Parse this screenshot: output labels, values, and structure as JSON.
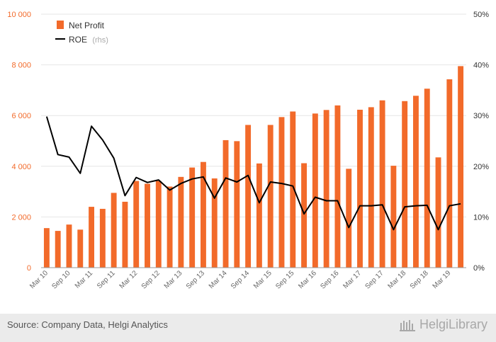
{
  "chart_data": {
    "type": "bar",
    "categories": [
      "Mar 10",
      "Jun 10",
      "Sep 10",
      "Dec 10",
      "Mar 11",
      "Jun 11",
      "Sep 11",
      "Dec 11",
      "Mar 12",
      "Jun 12",
      "Sep 12",
      "Dec 12",
      "Mar 13",
      "Jun 13",
      "Sep 13",
      "Dec 13",
      "Mar 14",
      "Jun 14",
      "Sep 14",
      "Dec 14",
      "Mar 15",
      "Jun 15",
      "Sep 15",
      "Dec 15",
      "Mar 16",
      "Jun 16",
      "Sep 16",
      "Dec 16",
      "Mar 17",
      "Jun 17",
      "Sep 17",
      "Dec 17",
      "Mar 18",
      "Jun 18",
      "Sep 18",
      "Dec 18",
      "Mar 19",
      "Jun 19"
    ],
    "x_tick_labels": [
      "Mar 10",
      "Sep 10",
      "Mar 11",
      "Sep 11",
      "Mar 12",
      "Sep 12",
      "Mar 13",
      "Sep 13",
      "Mar 14",
      "Sep 14",
      "Mar 15",
      "Sep 15",
      "Mar 16",
      "Sep 16",
      "Mar 17",
      "Sep 17",
      "Mar 18",
      "Sep 18",
      "Mar 19"
    ],
    "series": [
      {
        "name": "Net Profit",
        "axis": "left",
        "chart": "bar",
        "color": "#f26a2a",
        "values": [
          1560,
          1450,
          1700,
          1500,
          2400,
          2320,
          2950,
          2600,
          3420,
          3310,
          3420,
          3200,
          3580,
          3950,
          4170,
          3520,
          5030,
          4990,
          5630,
          4110,
          5630,
          5940,
          6160,
          4120,
          6080,
          6220,
          6400,
          3900,
          6230,
          6330,
          6600,
          4020,
          6570,
          6780,
          7060,
          4350,
          7430,
          7950
        ]
      },
      {
        "name": "ROE",
        "name_suffix": "(rhs)",
        "axis": "right",
        "chart": "line",
        "color": "#000000",
        "values": [
          29.8,
          22.3,
          21.8,
          18.6,
          27.9,
          25.2,
          21.6,
          14.2,
          17.8,
          16.8,
          17.3,
          15.3,
          16.6,
          17.5,
          17.9,
          13.7,
          17.7,
          16.9,
          18.2,
          12.8,
          16.9,
          16.6,
          16.1,
          10.6,
          13.9,
          13.2,
          13.2,
          7.9,
          12.2,
          12.2,
          12.4,
          7.5,
          12.0,
          12.2,
          12.3,
          7.5,
          12.2,
          12.6
        ]
      }
    ],
    "left_ticks": [
      "0",
      "2 000",
      "4 000",
      "6 000",
      "8 000",
      "10 000"
    ],
    "right_ticks": [
      "0%",
      "10%",
      "20%",
      "30%",
      "40%",
      "50%"
    ],
    "ylim_left": [
      0,
      10000
    ],
    "ylim_right": [
      0,
      50
    ],
    "grid": "horizontal",
    "legend_position": "top-left"
  },
  "footer": {
    "source": "Source: Company Data, Helgi Analytics",
    "brand": "HelgiLibrary"
  }
}
